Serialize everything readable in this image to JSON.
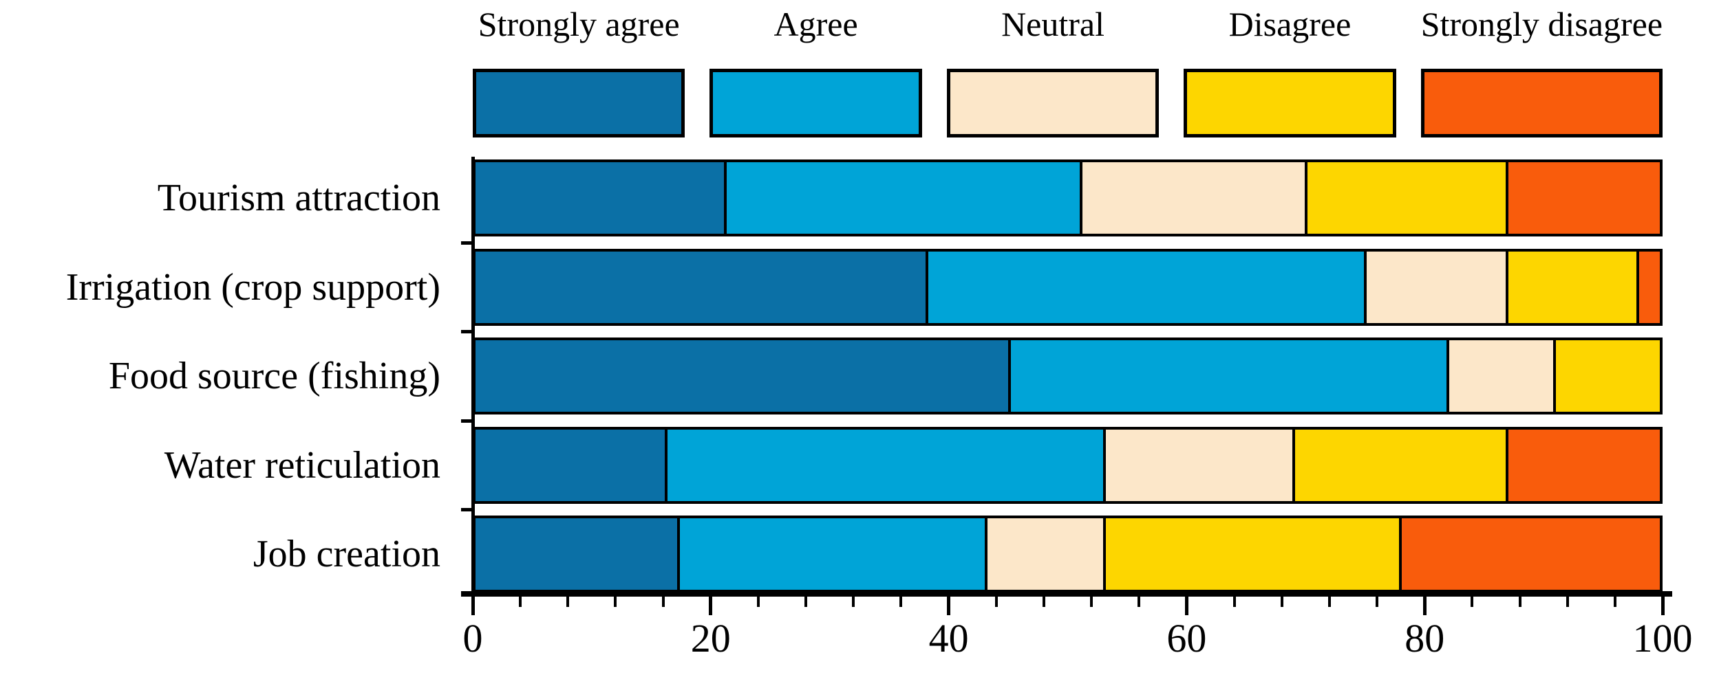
{
  "chart_data": {
    "type": "bar",
    "orientation": "horizontal",
    "stacked": true,
    "unit": "percent",
    "title": "",
    "xlabel": "",
    "ylabel": "",
    "xlim": [
      0,
      100
    ],
    "x_tick_labels": [
      "0",
      "20",
      "40",
      "60",
      "80",
      "100"
    ],
    "x_tick_values": [
      0,
      20,
      40,
      60,
      80,
      100
    ],
    "minor_tick_step": 4,
    "grid": false,
    "legend_position": "top",
    "categories": [
      "Tourism attraction",
      "Irrigation (crop support)",
      "Food source (fishing)",
      "Water reticulation",
      "Job creation"
    ],
    "series": [
      {
        "name": "Strongly agree",
        "color": "#0B70A6",
        "values": [
          21,
          38,
          45,
          16,
          17
        ]
      },
      {
        "name": "Agree",
        "color": "#00A4D7",
        "values": [
          30,
          37,
          37,
          37,
          26
        ]
      },
      {
        "name": "Neutral",
        "color": "#FCE7C9",
        "values": [
          19,
          12,
          9,
          16,
          10
        ]
      },
      {
        "name": "Disagree",
        "color": "#FDD600",
        "values": [
          17,
          11,
          9,
          18,
          25
        ]
      },
      {
        "name": "Strongly disagree",
        "color": "#F95C0C",
        "values": [
          13,
          2,
          0,
          13,
          22
        ]
      }
    ]
  },
  "colors": {
    "axis": "#000000",
    "background": "#FFFFFF",
    "bar_border": "#000000"
  }
}
